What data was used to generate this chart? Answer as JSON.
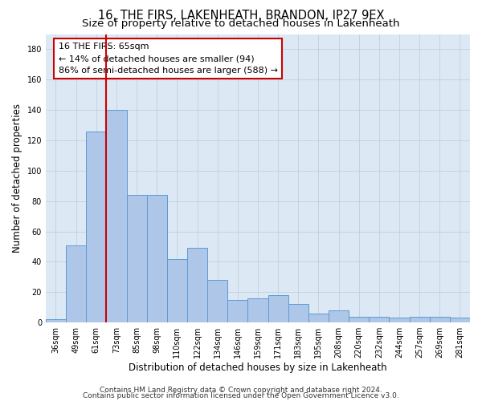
{
  "title": "16, THE FIRS, LAKENHEATH, BRANDON, IP27 9EX",
  "subtitle": "Size of property relative to detached houses in Lakenheath",
  "xlabel": "Distribution of detached houses by size in Lakenheath",
  "ylabel": "Number of detached properties",
  "categories": [
    "36sqm",
    "49sqm",
    "61sqm",
    "73sqm",
    "85sqm",
    "98sqm",
    "110sqm",
    "122sqm",
    "134sqm",
    "146sqm",
    "159sqm",
    "171sqm",
    "183sqm",
    "195sqm",
    "208sqm",
    "220sqm",
    "232sqm",
    "244sqm",
    "257sqm",
    "269sqm",
    "281sqm"
  ],
  "values": [
    2,
    51,
    126,
    140,
    84,
    84,
    42,
    49,
    28,
    15,
    16,
    18,
    12,
    6,
    8,
    4,
    4,
    3,
    4,
    4,
    3
  ],
  "bar_color": "#aec6e8",
  "bar_edge_color": "#5b9bd5",
  "vline_color": "#cc0000",
  "vline_pos": 2.5,
  "annotation_text": "16 THE FIRS: 65sqm\n← 14% of detached houses are smaller (94)\n86% of semi-detached houses are larger (588) →",
  "ylim": [
    0,
    190
  ],
  "yticks": [
    0,
    20,
    40,
    60,
    80,
    100,
    120,
    140,
    160,
    180
  ],
  "footnote1": "Contains HM Land Registry data © Crown copyright and database right 2024.",
  "footnote2": "Contains public sector information licensed under the Open Government Licence v3.0.",
  "background_color": "#ffffff",
  "plot_bg_color": "#dde8f5",
  "grid_color": "#c0cfe0",
  "title_fontsize": 10.5,
  "subtitle_fontsize": 9.5,
  "axis_label_fontsize": 8.5,
  "tick_fontsize": 7,
  "annotation_fontsize": 8,
  "footnote_fontsize": 6.5
}
